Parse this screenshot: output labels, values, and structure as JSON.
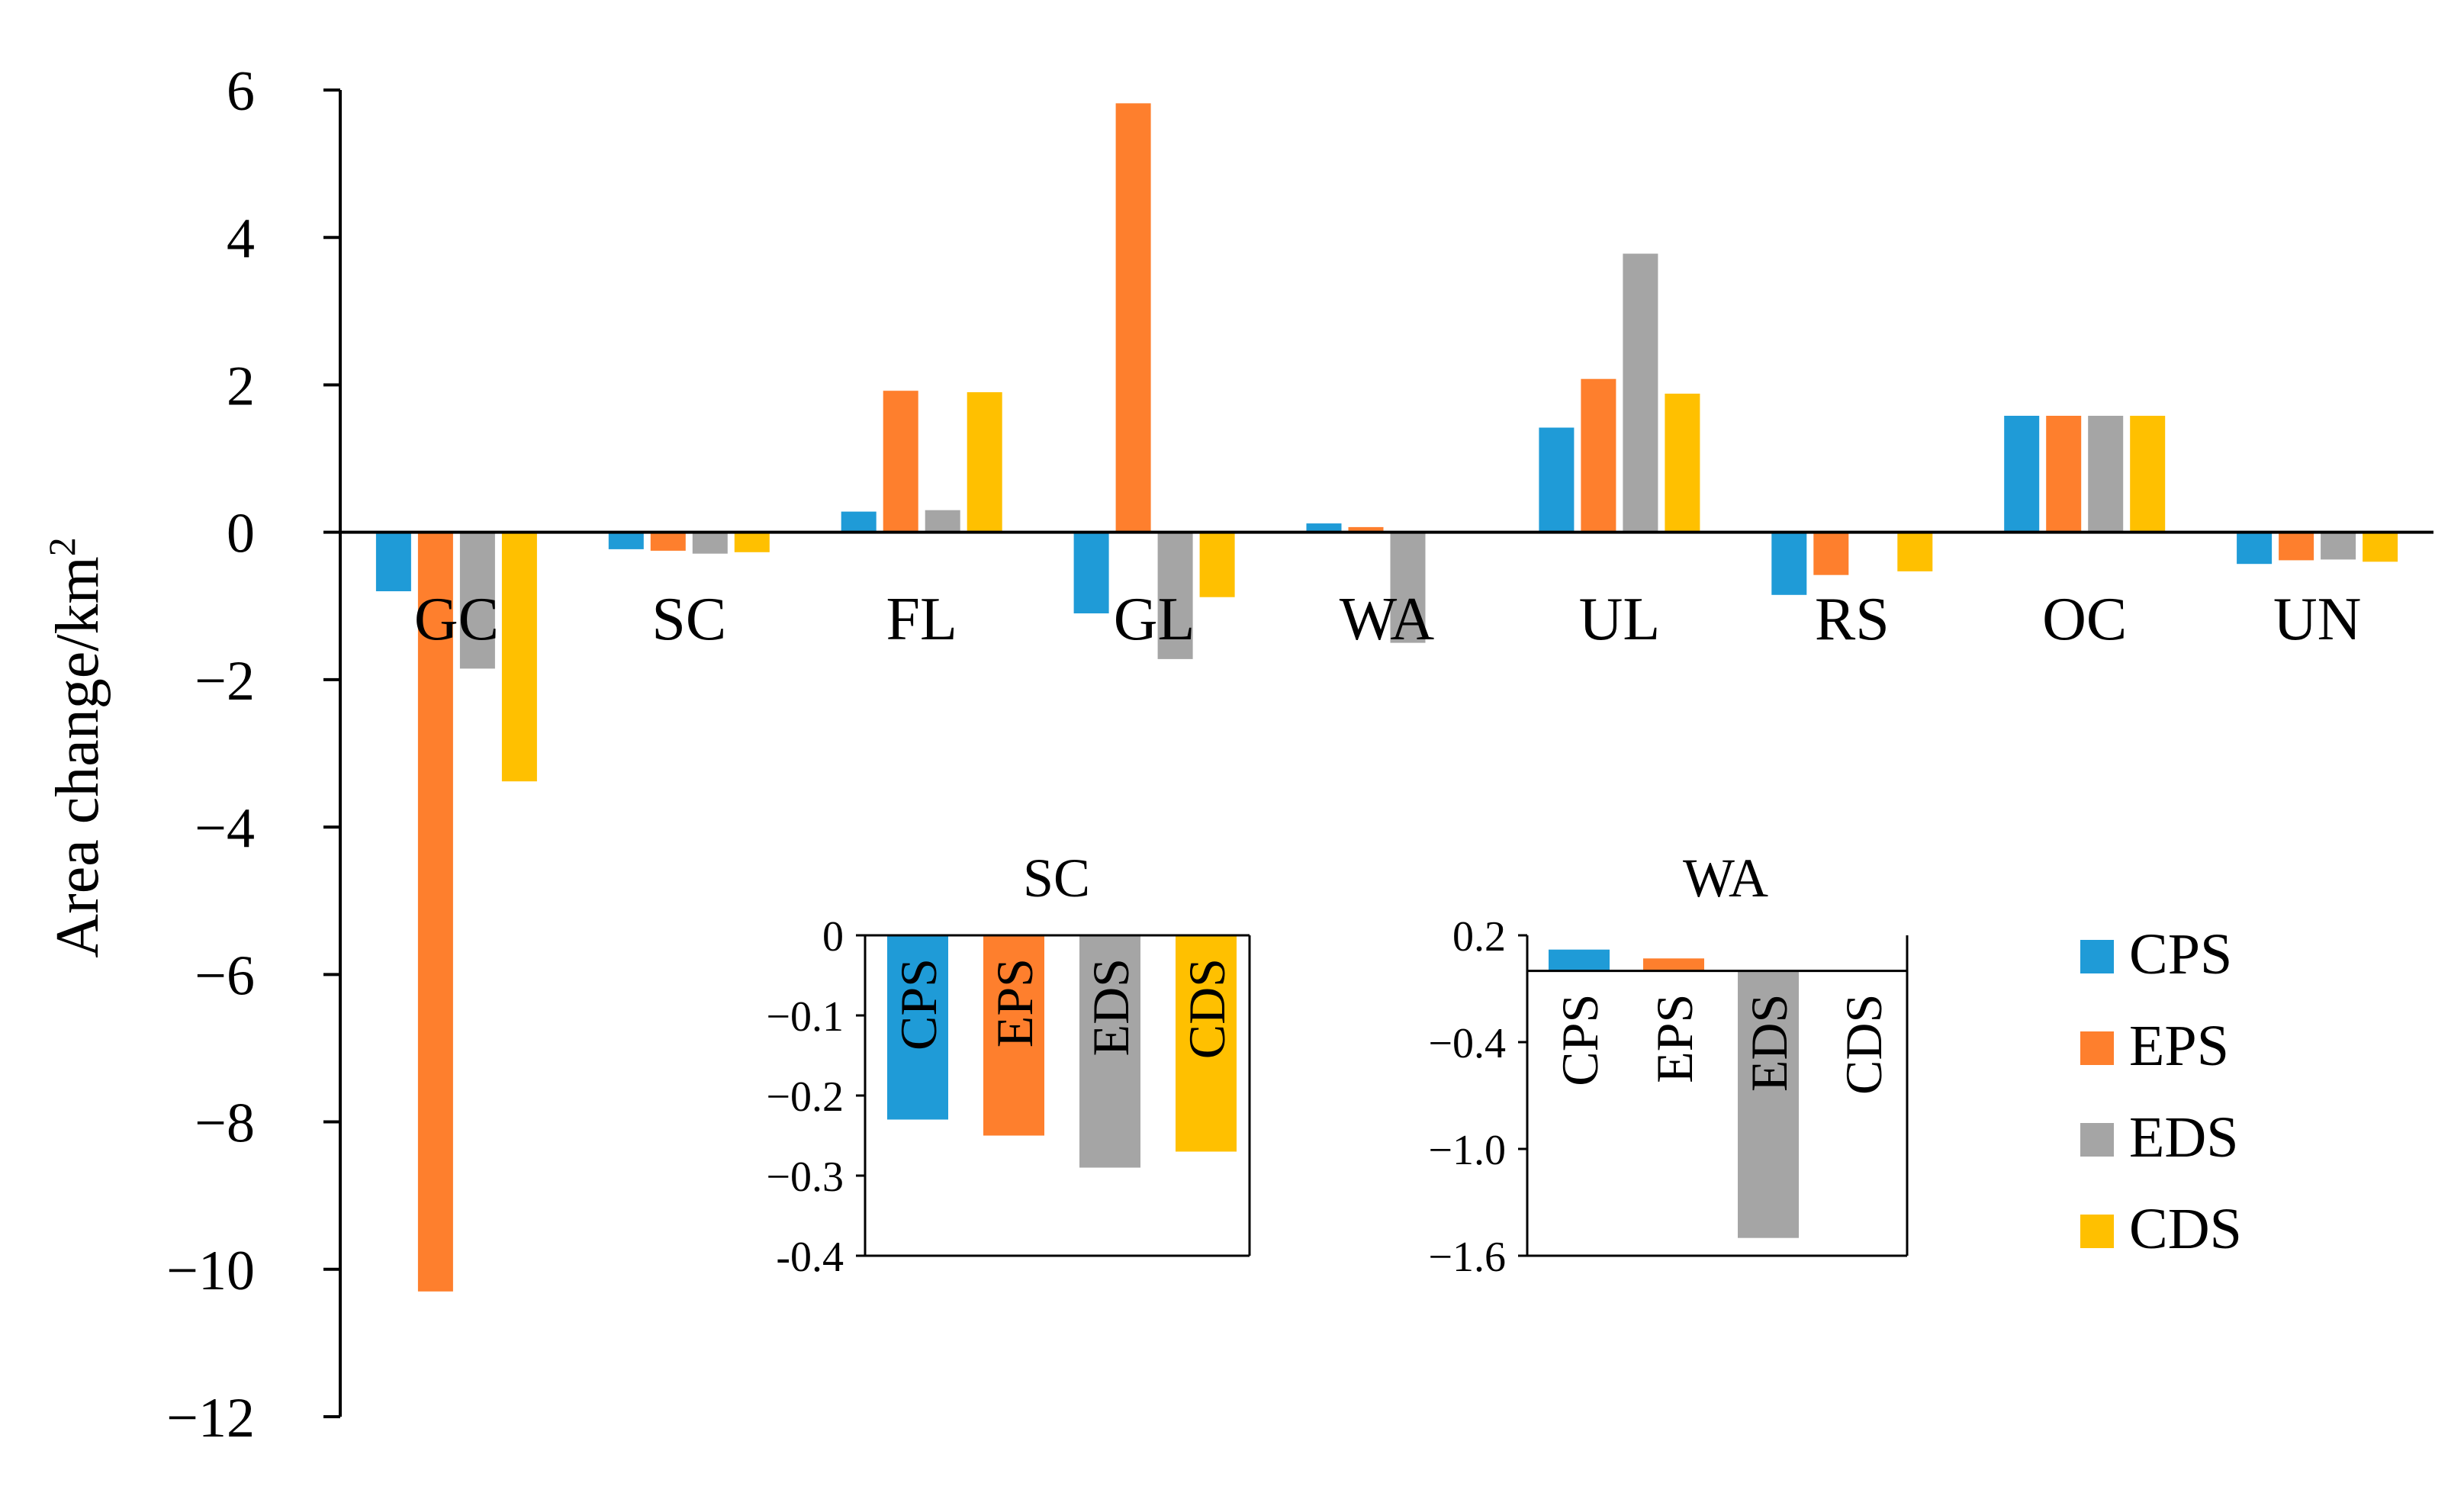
{
  "chart_data": {
    "type": "bar",
    "title": "",
    "ylabel": "Area change/km",
    "ylabel_superscript": "2",
    "xlabel": "",
    "ylim": [
      -12,
      6
    ],
    "yticks": [
      6,
      4,
      2,
      0,
      -2,
      -4,
      -6,
      -8,
      -10,
      -12
    ],
    "ytick_labels": [
      "6",
      "4",
      "2",
      "0",
      "−2",
      "−4",
      "−6",
      "−8",
      "−10",
      "−12"
    ],
    "categories": [
      "GC",
      "SC",
      "FL",
      "GL",
      "WA",
      "UL",
      "RS",
      "OC",
      "UN"
    ],
    "series": [
      {
        "name": "CPS",
        "color": "#1f9bd7",
        "values": [
          -0.8,
          -0.23,
          0.28,
          -1.1,
          0.12,
          1.42,
          -0.85,
          1.58,
          -0.43
        ]
      },
      {
        "name": "EPS",
        "color": "#fe7f2d",
        "values": [
          -10.3,
          -0.25,
          1.92,
          5.82,
          0.07,
          2.08,
          -0.58,
          1.58,
          -0.38
        ]
      },
      {
        "name": "EDS",
        "color": "#a5a5a5",
        "values": [
          -1.85,
          -0.29,
          0.3,
          -1.72,
          -1.5,
          3.78,
          0.0,
          1.58,
          -0.37
        ]
      },
      {
        "name": "CDS",
        "color": "#ffc000",
        "values": [
          -3.38,
          -0.27,
          1.9,
          -0.88,
          0.0,
          1.88,
          -0.53,
          1.58,
          -0.4
        ]
      }
    ],
    "legend": {
      "position": "bottom-right",
      "entries": [
        "CPS",
        "EPS",
        "EDS",
        "CDS"
      ]
    },
    "insets": [
      {
        "title": "SC",
        "type": "bar",
        "categories": [
          "CPS",
          "EPS",
          "EDS",
          "CDS"
        ],
        "values": [
          -0.23,
          -0.25,
          -0.29,
          -0.27
        ],
        "colors": [
          "#1f9bd7",
          "#fe7f2d",
          "#a5a5a5",
          "#ffc000"
        ],
        "ylim": [
          -0.4,
          0
        ],
        "yticks": [
          0,
          -0.1,
          -0.2,
          -0.3,
          -0.4
        ],
        "ytick_labels": [
          "0",
          "−0.1",
          "−0.2",
          "−0.3",
          "-0.4"
        ]
      },
      {
        "title": "WA",
        "type": "bar",
        "categories": [
          "CPS",
          "EPS",
          "EDS",
          "CDS"
        ],
        "values": [
          0.12,
          0.07,
          -1.5,
          0.0
        ],
        "colors": [
          "#1f9bd7",
          "#fe7f2d",
          "#a5a5a5",
          "#ffc000"
        ],
        "ylim": [
          -1.6,
          0.2
        ],
        "yticks": [
          0.2,
          -0.4,
          -1.0,
          -1.6
        ],
        "ytick_labels": [
          "0.2",
          "−0.4",
          "−1.0",
          "−1.6"
        ]
      }
    ]
  }
}
